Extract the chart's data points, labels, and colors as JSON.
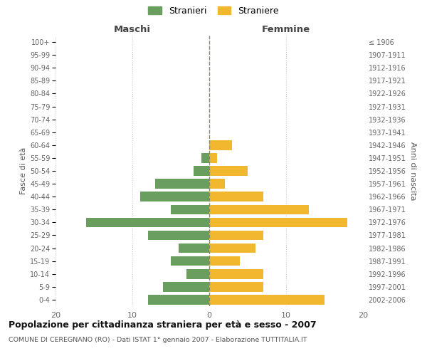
{
  "age_groups": [
    "0-4",
    "5-9",
    "10-14",
    "15-19",
    "20-24",
    "25-29",
    "30-34",
    "35-39",
    "40-44",
    "45-49",
    "50-54",
    "55-59",
    "60-64",
    "65-69",
    "70-74",
    "75-79",
    "80-84",
    "85-89",
    "90-94",
    "95-99",
    "100+"
  ],
  "birth_years": [
    "2002-2006",
    "1997-2001",
    "1992-1996",
    "1987-1991",
    "1982-1986",
    "1977-1981",
    "1972-1976",
    "1967-1971",
    "1962-1966",
    "1957-1961",
    "1952-1956",
    "1947-1951",
    "1942-1946",
    "1937-1941",
    "1932-1936",
    "1927-1931",
    "1922-1926",
    "1917-1921",
    "1912-1916",
    "1907-1911",
    "≤ 1906"
  ],
  "maschi": [
    8,
    6,
    3,
    5,
    4,
    8,
    16,
    5,
    9,
    7,
    2,
    1,
    0,
    0,
    0,
    0,
    0,
    0,
    0,
    0,
    0
  ],
  "femmine": [
    15,
    7,
    7,
    4,
    6,
    7,
    18,
    13,
    7,
    2,
    5,
    1,
    3,
    0,
    0,
    0,
    0,
    0,
    0,
    0,
    0
  ],
  "color_maschi": "#6a9e5e",
  "color_femmine": "#f0b72f",
  "title": "Popolazione per cittadinanza straniera per età e sesso - 2007",
  "subtitle": "COMUNE DI CEREGNANO (RO) - Dati ISTAT 1° gennaio 2007 - Elaborazione TUTTITALIA.IT",
  "header_left": "Maschi",
  "header_right": "Femmine",
  "ylabel_left": "Fasce di età",
  "ylabel_right": "Anni di nascita",
  "legend_stranieri": "Stranieri",
  "legend_straniere": "Straniere",
  "xlim": 20,
  "background_color": "#ffffff",
  "grid_color": "#cccccc"
}
